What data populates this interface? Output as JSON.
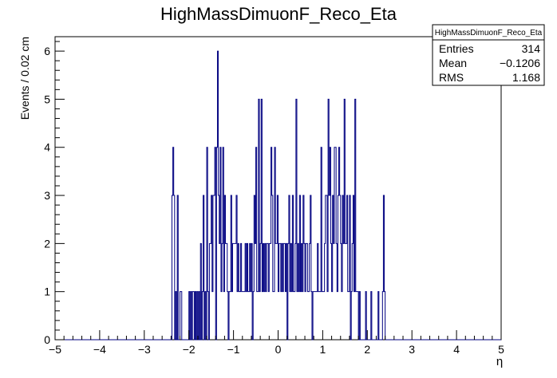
{
  "chart_data": {
    "type": "histogram",
    "title": "HighMassDimuonF_Reco_Eta",
    "xlabel": "η",
    "ylabel": "Events / 0.02 cm",
    "xlim": [
      -5,
      5
    ],
    "ylim": [
      0,
      6.3
    ],
    "bin_width": 0.02,
    "x_ticks": [
      "−5",
      "−4",
      "−3",
      "−2",
      "−1",
      "0",
      "1",
      "2",
      "3",
      "4",
      "5"
    ],
    "y_ticks": [
      "0",
      "1",
      "2",
      "3",
      "4",
      "5",
      "6"
    ],
    "line_color": "#000080",
    "stats": {
      "name": "HighMassDimuonF_Reco_Eta",
      "rows": [
        {
          "label": "Entries",
          "value": "314"
        },
        {
          "label": "Mean",
          "value": "−0.1206"
        },
        {
          "label": "RMS",
          "value": "1.168"
        }
      ]
    },
    "bins": [
      [
        -2.4,
        0
      ],
      [
        -2.38,
        3
      ],
      [
        -2.36,
        4
      ],
      [
        -2.34,
        3
      ],
      [
        -2.32,
        0
      ],
      [
        -2.3,
        1
      ],
      [
        -2.28,
        0
      ],
      [
        -2.26,
        3
      ],
      [
        -2.24,
        0
      ],
      [
        -2.22,
        0
      ],
      [
        -2.2,
        1
      ],
      [
        -2.18,
        1
      ],
      [
        -2.16,
        0
      ],
      [
        -2.14,
        0
      ],
      [
        -2.12,
        0
      ],
      [
        -2.1,
        0
      ],
      [
        -2.08,
        0
      ],
      [
        -2.06,
        0
      ],
      [
        -2.04,
        0
      ],
      [
        -2.02,
        0
      ],
      [
        -2.0,
        1
      ],
      [
        -1.98,
        0
      ],
      [
        -1.96,
        1
      ],
      [
        -1.94,
        0
      ],
      [
        -1.92,
        1
      ],
      [
        -1.9,
        1
      ],
      [
        -1.88,
        0
      ],
      [
        -1.86,
        1
      ],
      [
        -1.84,
        0
      ],
      [
        -1.82,
        1
      ],
      [
        -1.8,
        0
      ],
      [
        -1.78,
        1
      ],
      [
        -1.76,
        0
      ],
      [
        -1.74,
        2
      ],
      [
        -1.72,
        0
      ],
      [
        -1.7,
        1
      ],
      [
        -1.68,
        3
      ],
      [
        -1.66,
        0
      ],
      [
        -1.64,
        1
      ],
      [
        -1.62,
        0
      ],
      [
        -1.6,
        4
      ],
      [
        -1.58,
        1
      ],
      [
        -1.56,
        0
      ],
      [
        -1.54,
        2
      ],
      [
        -1.52,
        2
      ],
      [
        -1.5,
        3
      ],
      [
        -1.48,
        1
      ],
      [
        -1.46,
        3
      ],
      [
        -1.44,
        3
      ],
      [
        -1.42,
        4
      ],
      [
        -1.4,
        0
      ],
      [
        -1.38,
        4
      ],
      [
        -1.36,
        6
      ],
      [
        -1.34,
        3
      ],
      [
        -1.32,
        2
      ],
      [
        -1.3,
        4
      ],
      [
        -1.28,
        1
      ],
      [
        -1.26,
        2
      ],
      [
        -1.24,
        4
      ],
      [
        -1.22,
        1
      ],
      [
        -1.2,
        3
      ],
      [
        -1.18,
        2
      ],
      [
        -1.16,
        2
      ],
      [
        -1.14,
        1
      ],
      [
        -1.12,
        0
      ],
      [
        -1.1,
        1
      ],
      [
        -1.08,
        1
      ],
      [
        -1.06,
        3
      ],
      [
        -1.04,
        1
      ],
      [
        -1.02,
        2
      ],
      [
        -1.0,
        2
      ],
      [
        -0.98,
        2
      ],
      [
        -0.96,
        2
      ],
      [
        -0.94,
        3
      ],
      [
        -0.92,
        1
      ],
      [
        -0.9,
        2
      ],
      [
        -0.88,
        1
      ],
      [
        -0.86,
        1
      ],
      [
        -0.84,
        2
      ],
      [
        -0.82,
        1
      ],
      [
        -0.8,
        1
      ],
      [
        -0.78,
        1
      ],
      [
        -0.76,
        1
      ],
      [
        -0.74,
        2
      ],
      [
        -0.72,
        1
      ],
      [
        -0.7,
        2
      ],
      [
        -0.68,
        1
      ],
      [
        -0.66,
        1
      ],
      [
        -0.64,
        2
      ],
      [
        -0.62,
        1
      ],
      [
        -0.6,
        2
      ],
      [
        -0.58,
        0
      ],
      [
        -0.56,
        1
      ],
      [
        -0.54,
        3
      ],
      [
        -0.52,
        2
      ],
      [
        -0.5,
        4
      ],
      [
        -0.48,
        1
      ],
      [
        -0.46,
        1
      ],
      [
        -0.44,
        5
      ],
      [
        -0.42,
        1
      ],
      [
        -0.4,
        2
      ],
      [
        -0.38,
        5
      ],
      [
        -0.36,
        1
      ],
      [
        -0.34,
        2
      ],
      [
        -0.32,
        1
      ],
      [
        -0.3,
        2
      ],
      [
        -0.28,
        1
      ],
      [
        -0.26,
        2
      ],
      [
        -0.24,
        2
      ],
      [
        -0.22,
        1
      ],
      [
        -0.2,
        2
      ],
      [
        -0.18,
        2
      ],
      [
        -0.16,
        4
      ],
      [
        -0.14,
        3
      ],
      [
        -0.12,
        1
      ],
      [
        -0.1,
        1
      ],
      [
        -0.08,
        4
      ],
      [
        -0.06,
        2
      ],
      [
        -0.04,
        2
      ],
      [
        -0.02,
        3
      ],
      [
        0.0,
        1
      ],
      [
        0.02,
        2
      ],
      [
        0.04,
        2
      ],
      [
        0.06,
        1
      ],
      [
        0.08,
        2
      ],
      [
        0.1,
        1
      ],
      [
        0.12,
        2
      ],
      [
        0.14,
        2
      ],
      [
        0.16,
        1
      ],
      [
        0.18,
        2
      ],
      [
        0.2,
        0
      ],
      [
        0.22,
        2
      ],
      [
        0.24,
        3
      ],
      [
        0.26,
        1
      ],
      [
        0.28,
        2
      ],
      [
        0.3,
        1
      ],
      [
        0.32,
        3
      ],
      [
        0.34,
        1
      ],
      [
        0.36,
        1
      ],
      [
        0.38,
        2
      ],
      [
        0.4,
        5
      ],
      [
        0.42,
        1
      ],
      [
        0.44,
        2
      ],
      [
        0.46,
        1
      ],
      [
        0.48,
        3
      ],
      [
        0.5,
        1
      ],
      [
        0.52,
        2
      ],
      [
        0.54,
        1
      ],
      [
        0.56,
        3
      ],
      [
        0.58,
        2
      ],
      [
        0.6,
        1
      ],
      [
        0.62,
        2
      ],
      [
        0.64,
        2
      ],
      [
        0.66,
        1
      ],
      [
        0.68,
        1
      ],
      [
        0.7,
        2
      ],
      [
        0.72,
        3
      ],
      [
        0.74,
        1
      ],
      [
        0.76,
        0
      ],
      [
        0.78,
        1
      ],
      [
        0.8,
        1
      ],
      [
        0.82,
        1
      ],
      [
        0.84,
        1
      ],
      [
        0.86,
        1
      ],
      [
        0.88,
        2
      ],
      [
        0.9,
        1
      ],
      [
        0.92,
        1
      ],
      [
        0.94,
        1
      ],
      [
        0.96,
        4
      ],
      [
        0.98,
        1
      ],
      [
        1.0,
        1
      ],
      [
        1.02,
        1
      ],
      [
        1.04,
        2
      ],
      [
        1.06,
        3
      ],
      [
        1.08,
        3
      ],
      [
        1.1,
        1
      ],
      [
        1.12,
        5
      ],
      [
        1.14,
        3
      ],
      [
        1.16,
        4
      ],
      [
        1.18,
        2
      ],
      [
        1.2,
        1
      ],
      [
        1.22,
        3
      ],
      [
        1.24,
        2
      ],
      [
        1.26,
        4
      ],
      [
        1.28,
        4
      ],
      [
        1.3,
        2
      ],
      [
        1.32,
        1
      ],
      [
        1.34,
        3
      ],
      [
        1.36,
        4
      ],
      [
        1.38,
        3
      ],
      [
        1.4,
        2
      ],
      [
        1.42,
        1
      ],
      [
        1.44,
        3
      ],
      [
        1.46,
        2
      ],
      [
        1.48,
        5
      ],
      [
        1.5,
        2
      ],
      [
        1.52,
        2
      ],
      [
        1.54,
        3
      ],
      [
        1.56,
        1
      ],
      [
        1.58,
        1
      ],
      [
        1.6,
        3
      ],
      [
        1.62,
        0
      ],
      [
        1.64,
        1
      ],
      [
        1.66,
        2
      ],
      [
        1.68,
        3
      ],
      [
        1.7,
        1
      ],
      [
        1.72,
        5
      ],
      [
        1.74,
        1
      ],
      [
        1.76,
        1
      ],
      [
        1.78,
        1
      ],
      [
        1.8,
        0
      ],
      [
        1.82,
        1
      ],
      [
        1.84,
        0
      ],
      [
        1.86,
        0
      ],
      [
        1.88,
        0
      ],
      [
        1.9,
        0
      ],
      [
        1.92,
        0
      ],
      [
        1.94,
        0
      ],
      [
        1.96,
        1
      ],
      [
        1.98,
        0
      ],
      [
        2.0,
        0
      ],
      [
        2.02,
        0
      ],
      [
        2.04,
        0
      ],
      [
        2.06,
        0
      ],
      [
        2.08,
        1
      ],
      [
        2.1,
        0
      ],
      [
        2.12,
        0
      ],
      [
        2.14,
        0
      ],
      [
        2.16,
        0
      ],
      [
        2.18,
        0
      ],
      [
        2.2,
        0
      ],
      [
        2.22,
        0
      ],
      [
        2.24,
        1
      ],
      [
        2.26,
        0
      ],
      [
        2.28,
        0
      ],
      [
        2.3,
        0
      ],
      [
        2.32,
        0
      ],
      [
        2.34,
        1
      ],
      [
        2.36,
        3
      ],
      [
        2.38,
        1
      ],
      [
        2.4,
        0
      ]
    ]
  }
}
